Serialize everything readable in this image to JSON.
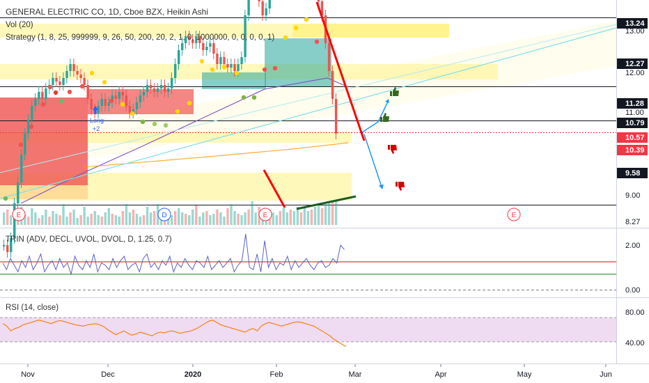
{
  "header": {
    "title": "GENERAL ELECTRIC CO, 1D, Cboe BZX, Heikin Ashi",
    "vol": "Vol (20)",
    "strategy": "Strategy (1, 8, 25, 999999, 9, 26, 50, 200, 20, 2, 1, 0, 1000000, 0, 0, 0, 0, 1)"
  },
  "price_axis": {
    "ticks": [
      "13.00",
      "12.00",
      "11.00",
      "9.00",
      "8.27"
    ],
    "markers": [
      {
        "label": "13.24",
        "color": "#131722"
      },
      {
        "label": "12.27",
        "color": "#131722"
      },
      {
        "label": "11.28",
        "color": "#131722"
      },
      {
        "label": "10.79",
        "color": "#131722"
      },
      {
        "label": "10.57",
        "color": "#f23645"
      },
      {
        "label": "10.39",
        "color": "#f23645"
      },
      {
        "label": "9.58",
        "color": "#131722"
      }
    ]
  },
  "signal_label": "Long\n+2",
  "earnings_labels": [
    "E",
    "D",
    "E",
    "E"
  ],
  "trin": {
    "label": "TRIN (ADV, DECL, UVOL, DVOL, D, 1.25, 0.7)",
    "ticks": [
      "2.00",
      "0.00"
    ],
    "upper": 1.25,
    "lower": 0.7
  },
  "rsi": {
    "label": "RSI (14, close)",
    "ticks": [
      "80.00",
      "40.00"
    ],
    "band": [
      30,
      70
    ]
  },
  "time_axis": [
    "Nov",
    "Dec",
    "2020",
    "Feb",
    "Mar",
    "Apr",
    "May",
    "Jun"
  ],
  "colors": {
    "up": "#26a69a",
    "down": "#ef5350",
    "zone": "#ffeb3b",
    "trendline": "#ff0000",
    "projection": "#2196f3",
    "trin_line": "#5b5fc7",
    "rsi_line": "#f57c00",
    "rsi_band": "#e1bee7"
  }
}
